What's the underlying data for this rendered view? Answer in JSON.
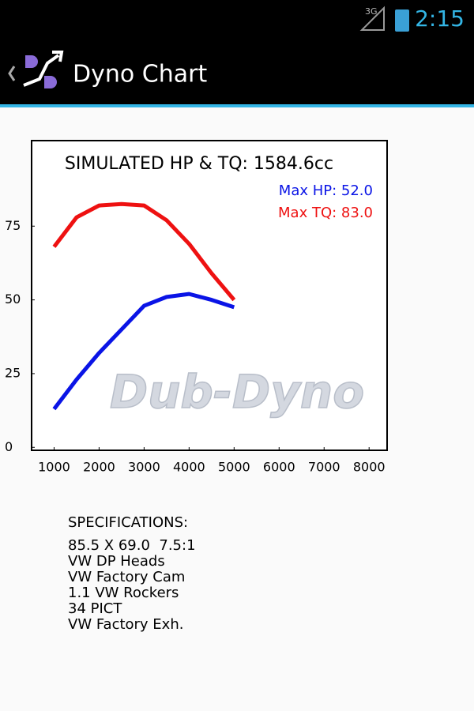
{
  "status_bar": {
    "network": "3G",
    "time": "2:15"
  },
  "action_bar": {
    "title": "Dyno Chart"
  },
  "chart_data": {
    "type": "line",
    "title": "SIMULATED HP & TQ: 1584.6cc",
    "x": [
      1000,
      1500,
      2000,
      2500,
      3000,
      3500,
      4000,
      4500,
      5000
    ],
    "series": [
      {
        "color": "#0a14e6",
        "values": [
          13,
          23,
          32,
          40,
          48,
          51,
          52,
          50,
          47.5
        ]
      },
      {
        "color": "#ee1111",
        "values": [
          68,
          78,
          82,
          82.5,
          82,
          77,
          69,
          59,
          50
        ]
      }
    ],
    "annotations": [
      "Max HP: 52.0",
      "Max TQ: 83.0"
    ],
    "watermark": "Dub-Dyno",
    "xlim": [
      500,
      8400
    ],
    "xticks": [
      1000,
      2000,
      3000,
      4000,
      5000,
      6000,
      7000,
      8000
    ],
    "ylim": [
      -1,
      104
    ],
    "yticks": [
      0,
      25,
      50,
      75
    ],
    "grid": false
  },
  "specifications": {
    "heading": "SPECIFICATIONS:",
    "lines": [
      "85.5 X 69.0  7.5:1",
      "VW DP Heads",
      "VW Factory Cam",
      "1.1 VW Rockers",
      "34 PICT",
      "VW Factory Exh."
    ]
  }
}
